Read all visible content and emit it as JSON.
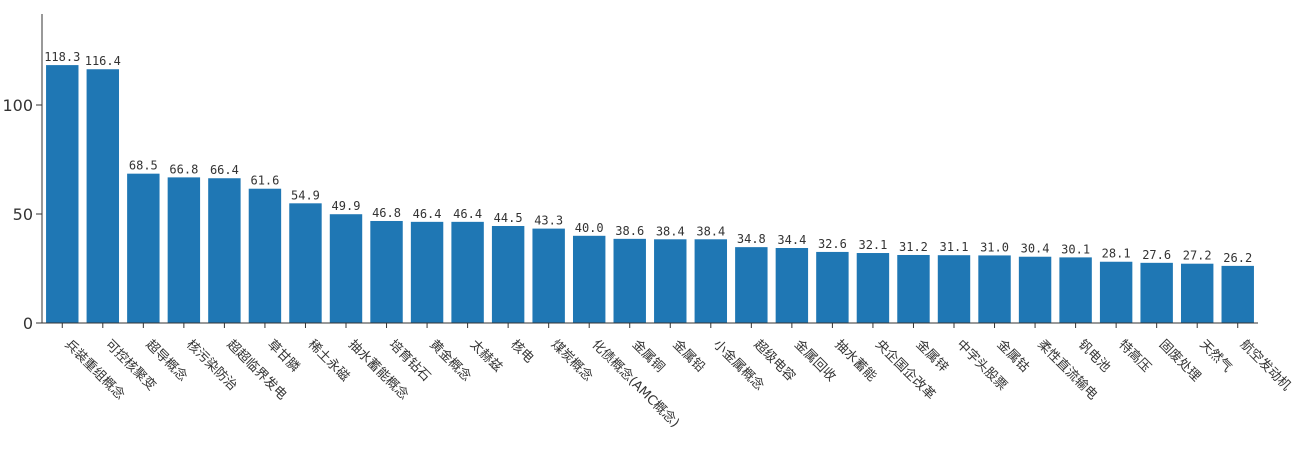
{
  "chart_data": {
    "type": "bar",
    "title": "",
    "xlabel": "",
    "ylabel": "",
    "ylim": [
      0,
      140
    ],
    "yticks": [
      0,
      50,
      100
    ],
    "grid": false,
    "bar_color": "#1f77b4",
    "categories": [
      "兵装重组概念",
      "可控核聚变",
      "超导概念",
      "核污染防治",
      "超超临界发电",
      "草甘膦",
      "稀土永磁",
      "抽水蓄能概念",
      "培育钻石",
      "黄金概念",
      "太赫兹",
      "核电",
      "煤炭概念",
      "化债概念(AMC概念)",
      "金属铜",
      "金属铅",
      "小金属概念",
      "超级电容",
      "金属回收",
      "抽水蓄能",
      "央企国企改革",
      "金属锌",
      "中字头股票",
      "金属钴",
      "柔性直流输电",
      "钒电池",
      "特高压",
      "固废处理",
      "天然气",
      "航空发动机"
    ],
    "values": [
      118.3,
      116.4,
      68.5,
      66.8,
      66.4,
      61.6,
      54.9,
      49.9,
      46.8,
      46.4,
      46.4,
      44.5,
      43.3,
      40.0,
      38.6,
      38.4,
      38.4,
      34.8,
      34.4,
      32.6,
      32.1,
      31.2,
      31.1,
      31.0,
      30.4,
      30.1,
      28.1,
      27.6,
      27.2,
      26.2
    ],
    "value_labels": [
      "118.3",
      "116.4",
      "68.5",
      "66.8",
      "66.4",
      "61.6",
      "54.9",
      "49.9",
      "46.8",
      "46.4",
      "46.4",
      "44.5",
      "43.3",
      "40.0",
      "38.6",
      "38.4",
      "38.4",
      "34.8",
      "34.4",
      "32.6",
      "32.1",
      "31.2",
      "31.1",
      "31.0",
      "30.4",
      "30.1",
      "28.1",
      "27.6",
      "27.2",
      "26.2"
    ]
  }
}
